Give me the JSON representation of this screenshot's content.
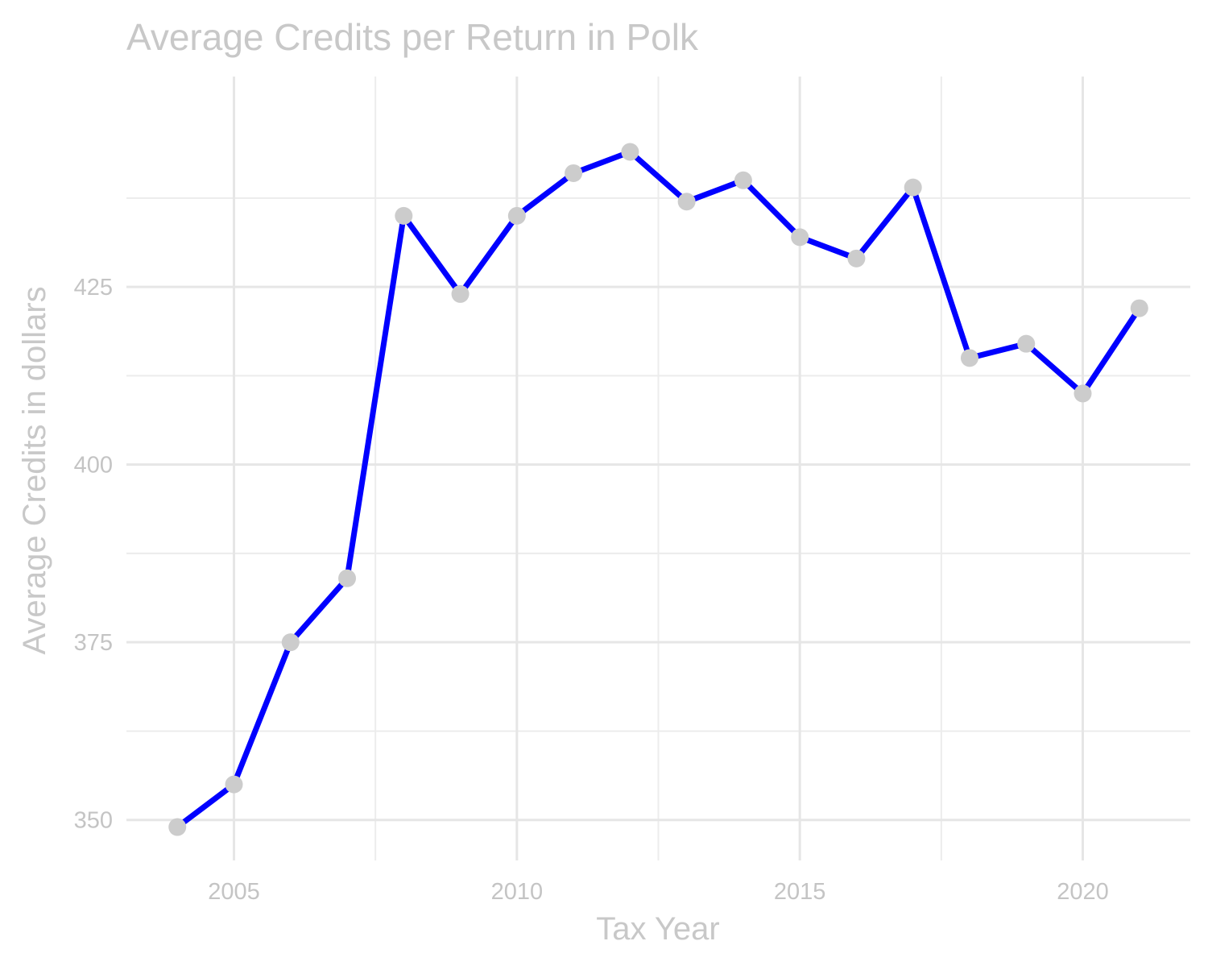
{
  "chart_data": {
    "type": "line",
    "title": "Average Credits per Return in Polk",
    "xlabel": "Tax Year",
    "ylabel": "Average Credits in dollars",
    "x": [
      2004,
      2005,
      2006,
      2007,
      2008,
      2009,
      2010,
      2011,
      2012,
      2013,
      2014,
      2015,
      2016,
      2017,
      2018,
      2019,
      2020,
      2021
    ],
    "series": [
      {
        "values": [
          349,
          355,
          375,
          384,
          435,
          424,
          435,
          441,
          444,
          437,
          440,
          432,
          429,
          439,
          415,
          417,
          410,
          422
        ]
      }
    ],
    "xlim": [
      2003.1,
      2021.9
    ],
    "ylim": [
      344.3,
      454.6
    ],
    "x_ticks": [
      2005,
      2010,
      2015,
      2020
    ],
    "x_tick_labels": [
      "2005",
      "2010",
      "2015",
      "2020"
    ],
    "y_ticks": [
      350,
      375,
      400,
      425
    ],
    "y_tick_labels": [
      "350",
      "375",
      "400",
      "425"
    ],
    "grid": true,
    "legend": "none",
    "colors": {
      "line": "#0000ff",
      "points": "#cccccc",
      "text": "#c8c8c8",
      "grid": "#e6e6e6"
    }
  }
}
